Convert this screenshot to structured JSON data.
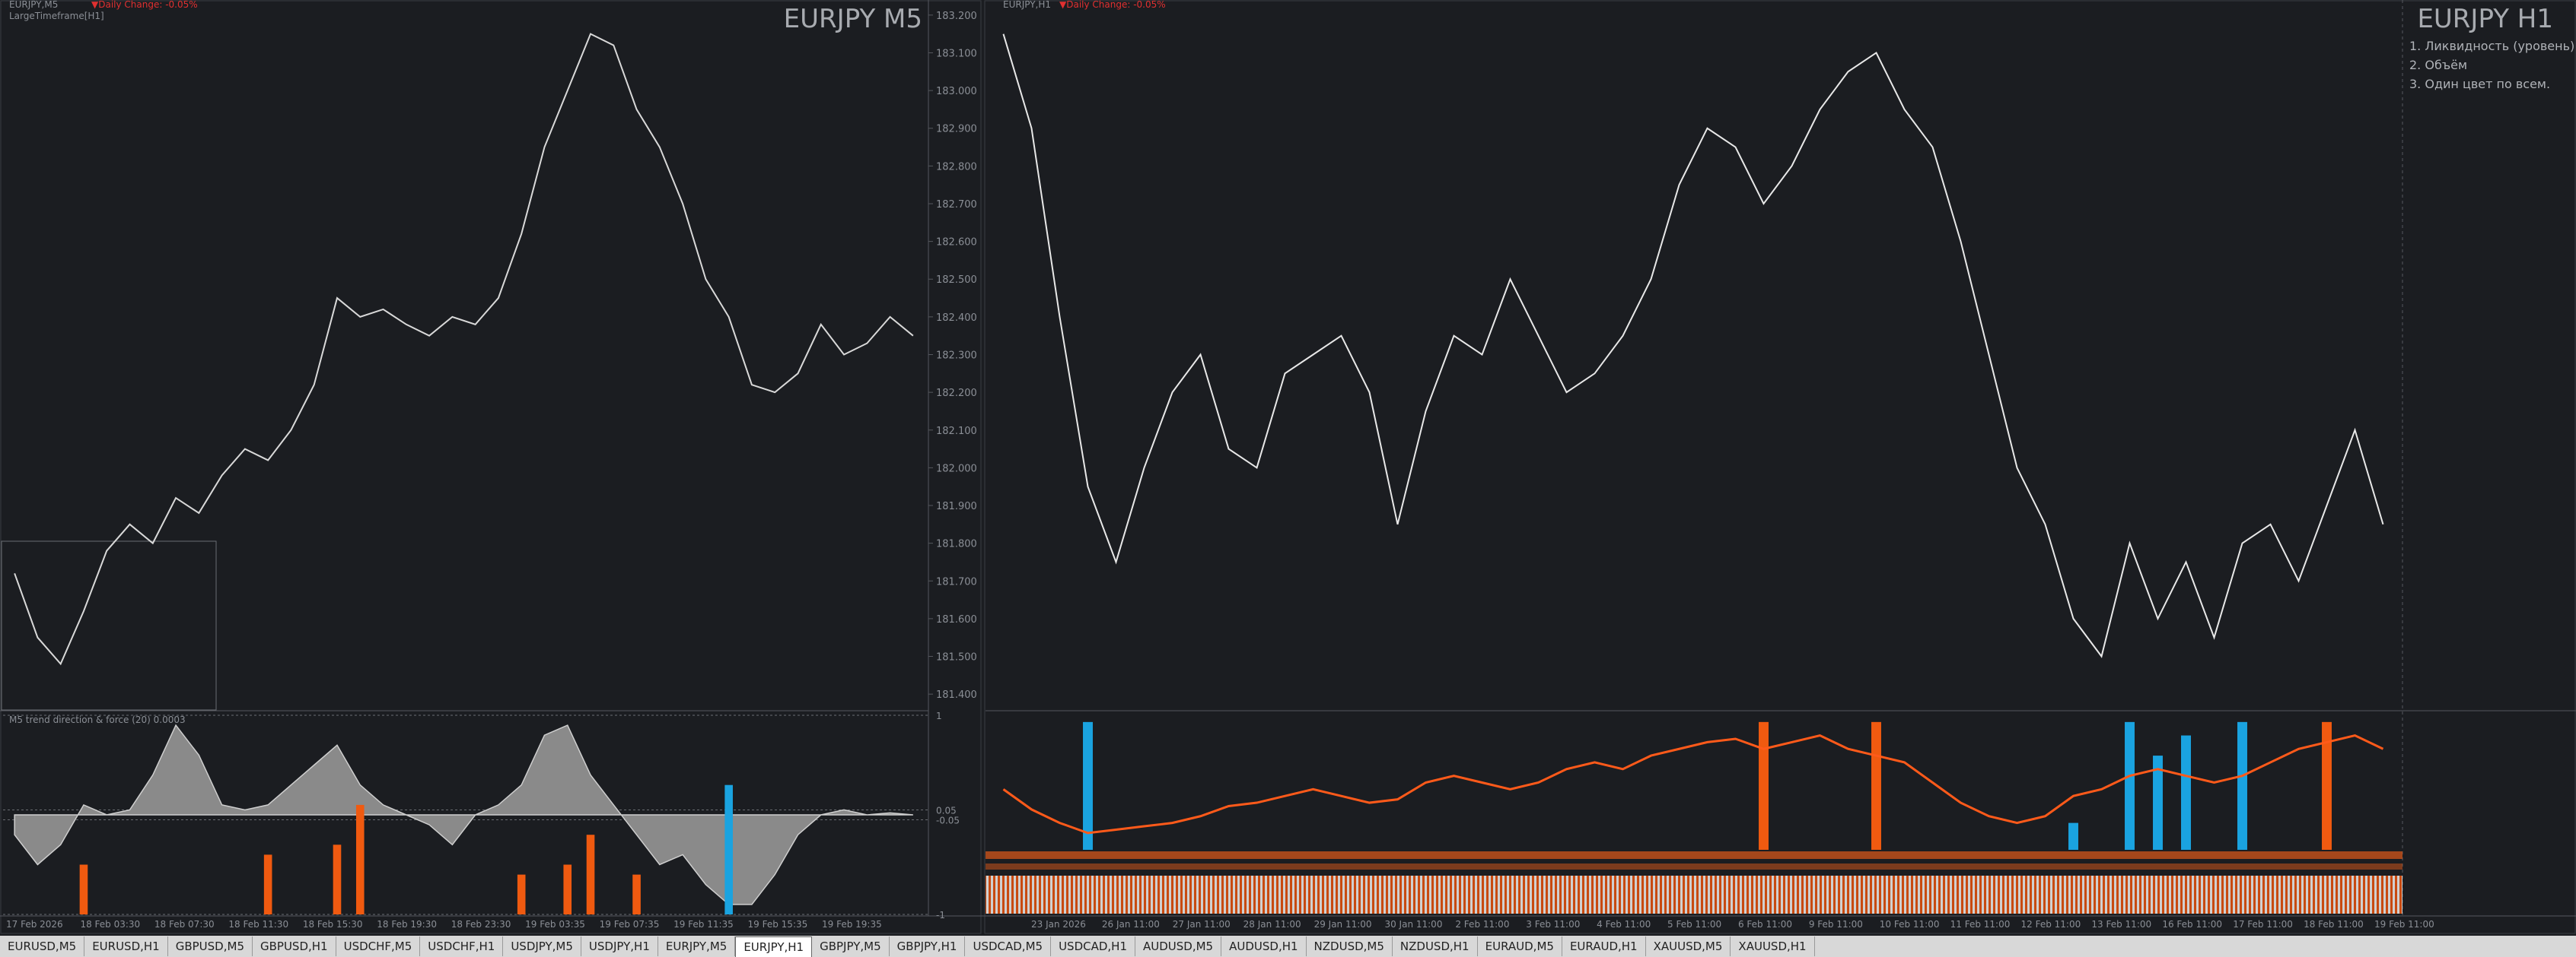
{
  "windows": [
    {
      "header": "EURJPY,M5",
      "change": "▼Daily Change: -0.05%",
      "subheader": "LargeTimeframe[H1]",
      "symbol": "EURJPY M5",
      "price_ylim": [
        181.36,
        183.24
      ],
      "price_ticks": [
        {
          "value": 183.2,
          "label": "183.200"
        },
        {
          "value": 183.1,
          "label": "183.100"
        },
        {
          "value": 183,
          "label": "183.000"
        },
        {
          "value": 182.9,
          "label": "182.900"
        },
        {
          "value": 182.8,
          "label": "182.800"
        },
        {
          "value": 182.7,
          "label": "182.700"
        },
        {
          "value": 182.6,
          "label": "182.600"
        },
        {
          "value": 182.5,
          "label": "182.500"
        },
        {
          "value": 182.4,
          "label": "182.400"
        },
        {
          "value": 182.3,
          "label": "182.300"
        },
        {
          "value": 182.2,
          "label": "182.200"
        },
        {
          "value": 182.1,
          "label": "182.100"
        },
        {
          "value": 182,
          "label": "182.000"
        },
        {
          "value": 181.9,
          "label": "181.900"
        },
        {
          "value": 181.8,
          "label": "181.800"
        },
        {
          "value": 181.7,
          "label": "181.700"
        },
        {
          "value": 181.6,
          "label": "181.600"
        },
        {
          "value": 181.5,
          "label": "181.500"
        },
        {
          "value": 181.4,
          "label": "181.400"
        }
      ],
      "closes": [
        181.72,
        181.55,
        181.48,
        181.62,
        181.78,
        181.85,
        181.8,
        181.92,
        181.88,
        181.98,
        182.05,
        182.02,
        182.1,
        182.22,
        182.45,
        182.4,
        182.42,
        182.38,
        182.35,
        182.4,
        182.38,
        182.45,
        182.62,
        182.85,
        183,
        183.15,
        183.12,
        182.95,
        182.85,
        182.7,
        182.5,
        182.4,
        182.22,
        182.2,
        182.25,
        182.38,
        182.3,
        182.33,
        182.4,
        182.35
      ],
      "dates": [
        "17 Feb 2026",
        "18 Feb 03:30",
        "18 Feb 07:30",
        "18 Feb 11:30",
        "18 Feb 15:30",
        "18 Feb 19:30",
        "18 Feb 23:30",
        "19 Feb 03:35",
        "19 Feb 07:35",
        "19 Feb 11:35",
        "19 Feb 15:35",
        "19 Feb 19:35"
      ],
      "indicator": {
        "label": "M5 trend direction & force (20) 0.0003",
        "ylim": [
          -1,
          1
        ],
        "ticks": [
          1,
          0.05,
          -0.05,
          -1
        ],
        "area": [
          -0.2,
          -0.5,
          -0.3,
          0.1,
          0,
          0.05,
          0.4,
          0.9,
          0.6,
          0.1,
          0.05,
          0.1,
          0.3,
          0.5,
          0.7,
          0.3,
          0.1,
          0,
          -0.1,
          -0.3,
          0,
          0.1,
          0.3,
          0.8,
          0.9,
          0.4,
          0.1,
          -0.2,
          -0.5,
          -0.4,
          -0.7,
          -0.9,
          -0.9,
          -0.6,
          -0.2,
          0,
          0.05,
          0,
          0.02,
          0
        ],
        "orange_bars": [
          null,
          null,
          null,
          -0.5,
          null,
          null,
          null,
          null,
          null,
          null,
          null,
          -0.4,
          null,
          null,
          -0.3,
          0.1,
          null,
          null,
          null,
          null,
          null,
          null,
          -0.6,
          null,
          -0.5,
          -0.2,
          null,
          -0.6,
          null,
          null,
          null,
          null,
          null,
          null,
          null,
          null,
          null,
          null,
          null,
          null
        ],
        "blue_bars": [
          null,
          null,
          null,
          null,
          null,
          null,
          null,
          null,
          null,
          null,
          null,
          null,
          null,
          null,
          null,
          null,
          null,
          null,
          null,
          null,
          null,
          null,
          null,
          null,
          null,
          null,
          null,
          null,
          null,
          null,
          null,
          0.3,
          null,
          null,
          null,
          null,
          null,
          null,
          null,
          null
        ]
      }
    },
    {
      "header": "EURJPY,H1",
      "change": "▼Daily Change: -0.05%",
      "symbol": "EURJPY H1",
      "notes": [
        "1. Ликвидность (уровень)",
        "2. Объём",
        "3. Один цвет по всем."
      ],
      "price_ylim": [
        181.36,
        183.24
      ],
      "closes": [
        183.15,
        182.9,
        182.4,
        181.95,
        181.75,
        182,
        182.2,
        182.3,
        182.05,
        182,
        182.25,
        182.3,
        182.35,
        182.2,
        181.85,
        182.15,
        182.35,
        182.3,
        182.5,
        182.35,
        182.2,
        182.25,
        182.35,
        182.5,
        182.75,
        182.9,
        182.85,
        182.7,
        182.8,
        182.95,
        183.05,
        183.1,
        182.95,
        182.85,
        182.6,
        182.3,
        182,
        181.85,
        181.6,
        181.5,
        181.8,
        181.6,
        181.75,
        181.55,
        181.8,
        181.85,
        181.7,
        181.9,
        182.1,
        181.85
      ],
      "dates": [
        "23 Jan 2026",
        "26 Jan 11:00",
        "27 Jan 11:00",
        "28 Jan 11:00",
        "29 Jan 11:00",
        "30 Jan 11:00",
        "2 Feb 11:00",
        "3 Feb 11:00",
        "4 Feb 11:00",
        "5 Feb 11:00",
        "6 Feb 11:00",
        "9 Feb 11:00",
        "10 Feb 11:00",
        "11 Feb 11:00",
        "12 Feb 11:00",
        "13 Feb 11:00",
        "16 Feb 11:00",
        "17 Feb 11:00",
        "18 Feb 11:00",
        "19 Feb 11:00"
      ],
      "indicator": {
        "ylim": [
          -1,
          1
        ],
        "line": [
          -0.1,
          -0.4,
          -0.6,
          -0.75,
          -0.7,
          -0.65,
          -0.6,
          -0.5,
          -0.35,
          -0.3,
          -0.2,
          -0.1,
          -0.2,
          -0.3,
          -0.25,
          0,
          0.1,
          0,
          -0.1,
          0,
          0.2,
          0.3,
          0.2,
          0.4,
          0.5,
          0.6,
          0.65,
          0.5,
          0.6,
          0.7,
          0.5,
          0.4,
          0.3,
          0,
          -0.3,
          -0.5,
          -0.6,
          -0.5,
          -0.2,
          -0.1,
          0.1,
          0.2,
          0.1,
          0,
          0.1,
          0.3,
          0.5,
          0.6,
          0.7,
          0.5
        ],
        "orange_bars": [
          null,
          null,
          null,
          null,
          null,
          null,
          null,
          null,
          null,
          null,
          null,
          null,
          null,
          null,
          null,
          null,
          null,
          null,
          null,
          null,
          null,
          null,
          null,
          null,
          null,
          null,
          null,
          0.9,
          null,
          null,
          null,
          0.9,
          null,
          null,
          null,
          null,
          null,
          null,
          null,
          null,
          null,
          null,
          null,
          null,
          null,
          null,
          null,
          0.9,
          null,
          null
        ],
        "blue_bars": [
          null,
          null,
          null,
          0.9,
          null,
          null,
          null,
          null,
          null,
          null,
          null,
          null,
          null,
          null,
          null,
          null,
          null,
          null,
          null,
          null,
          null,
          null,
          null,
          null,
          null,
          null,
          null,
          null,
          null,
          null,
          null,
          null,
          null,
          null,
          null,
          null,
          null,
          null,
          -0.6,
          null,
          0.9,
          0.4,
          0.7,
          null,
          0.9,
          null,
          null,
          null,
          null,
          null
        ]
      }
    }
  ],
  "tabs": [
    "EURUSD,M5",
    "EURUSD,H1",
    "GBPUSD,M5",
    "GBPUSD,H1",
    "USDCHF,M5",
    "USDCHF,H1",
    "USDJPY,M5",
    "USDJPY,H1",
    "EURJPY,M5",
    "EURJPY,H1",
    "GBPJPY,M5",
    "GBPJPY,H1",
    "USDCAD,M5",
    "USDCAD,H1",
    "AUDUSD,M5",
    "AUDUSD,H1",
    "NZDUSD,M5",
    "NZDUSD,H1",
    "EURAUD,M5",
    "EURAUD,H1",
    "XAUUSD,M5",
    "XAUUSD,H1"
  ],
  "active_tab": 9
}
